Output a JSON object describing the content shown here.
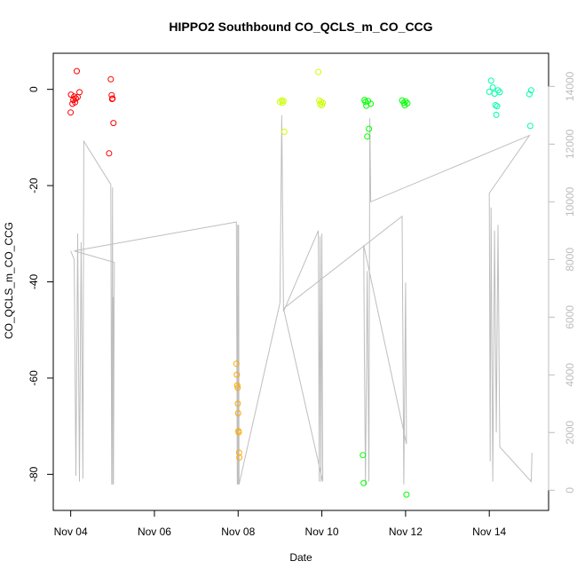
{
  "chart_data": {
    "type": "scatter",
    "title": "HIPPO2 Southbound CO_QCLS_m_CO_CCG",
    "xlabel": "Date",
    "ylabel": "CO_QCLS_m_CO_CCG",
    "x_ticks": [
      "Nov 04",
      "Nov 06",
      "Nov 08",
      "Nov 10",
      "Nov 12",
      "Nov 14"
    ],
    "y_ticks": [
      "0",
      "-20",
      "-40",
      "-60",
      "-80"
    ],
    "y2_ticks": [
      "0",
      "2000",
      "4000",
      "6000",
      "8000",
      "10000",
      "12000",
      "14000"
    ],
    "xlim": [
      "Nov 03 14:00",
      "Nov 15 10:00"
    ],
    "ylim": [
      -87.5,
      7.5
    ],
    "y2lim": [
      -700,
      15150
    ],
    "grid": false,
    "legend": "none",
    "series": [
      {
        "color": "#ff0000",
        "points": [
          [
            "Nov 04 00:00",
            -4.8
          ],
          [
            "Nov 04 00:10",
            -1.1
          ],
          [
            "Nov 04 01:00",
            -3.0
          ],
          [
            "Nov 04 01:30",
            -2.2
          ],
          [
            "Nov 04 02:00",
            -1.5
          ],
          [
            "Nov 04 02:30",
            -2.7
          ],
          [
            "Nov 04 03:00",
            -1.9
          ],
          [
            "Nov 04 03:30",
            3.8
          ],
          [
            "Nov 04 04:00",
            -1.6
          ],
          [
            "Nov 04 05:00",
            -0.6
          ],
          [
            "Nov 04 22:00",
            -13.3
          ],
          [
            "Nov 04 23:00",
            2.1
          ],
          [
            "Nov 04 23:30",
            -1.2
          ],
          [
            "Nov 04 23:45",
            -2.0
          ],
          [
            "Nov 05 00:00",
            -1.9
          ],
          [
            "Nov 05 00:30",
            -7.0
          ]
        ]
      },
      {
        "color": "#ffaa00",
        "points": [
          [
            "Nov 07 23:00",
            -57.0
          ],
          [
            "Nov 07 23:15",
            -59.3
          ],
          [
            "Nov 07 23:30",
            -61.5
          ],
          [
            "Nov 07 23:45",
            -62.0
          ],
          [
            "Nov 07 23:50",
            -65.3
          ],
          [
            "Nov 08 00:00",
            -67.3
          ],
          [
            "Nov 08 00:10",
            -71.0
          ],
          [
            "Nov 08 00:20",
            -71.3
          ],
          [
            "Nov 08 00:30",
            -75.5
          ],
          [
            "Nov 08 00:40",
            -76.5
          ]
        ]
      },
      {
        "color": "#ccff00",
        "points": [
          [
            "Nov 09 00:00",
            -2.6
          ],
          [
            "Nov 09 01:00",
            -2.3
          ],
          [
            "Nov 09 01:30",
            -2.8
          ],
          [
            "Nov 09 02:00",
            -2.4
          ],
          [
            "Nov 09 02:30",
            -8.8
          ],
          [
            "Nov 09 22:00",
            3.6
          ],
          [
            "Nov 09 22:30",
            -2.3
          ],
          [
            "Nov 09 23:00",
            -3.1
          ],
          [
            "Nov 09 23:30",
            -2.6
          ],
          [
            "Nov 10 00:00",
            -3.3
          ],
          [
            "Nov 10 00:30",
            -2.8
          ]
        ]
      },
      {
        "color": "#00ff00",
        "points": [
          [
            "Nov 10 23:30",
            -76.0
          ],
          [
            "Nov 11 00:00",
            -81.8
          ],
          [
            "Nov 11 00:30",
            -2.2
          ],
          [
            "Nov 11 01:00",
            -2.6
          ],
          [
            "Nov 11 01:30",
            -3.4
          ],
          [
            "Nov 11 02:00",
            -9.8
          ],
          [
            "Nov 11 02:30",
            -2.4
          ],
          [
            "Nov 11 03:00",
            -8.2
          ],
          [
            "Nov 11 04:00",
            -3.0
          ],
          [
            "Nov 11 22:00",
            -2.3
          ],
          [
            "Nov 11 23:00",
            -2.8
          ],
          [
            "Nov 11 23:30",
            -3.3
          ],
          [
            "Nov 12 00:00",
            -2.5
          ],
          [
            "Nov 12 00:30",
            -84.2
          ],
          [
            "Nov 12 01:00",
            -2.9
          ]
        ]
      },
      {
        "color": "#00ffaa",
        "points": [
          [
            "Nov 14 00:00",
            -0.5
          ],
          [
            "Nov 14 01:00",
            1.8
          ],
          [
            "Nov 14 02:00",
            0.4
          ],
          [
            "Nov 14 03:00",
            -0.9
          ],
          [
            "Nov 14 03:30",
            -3.3
          ],
          [
            "Nov 14 04:00",
            -5.3
          ],
          [
            "Nov 14 04:30",
            -3.5
          ],
          [
            "Nov 14 05:00",
            -0.2
          ],
          [
            "Nov 14 06:00",
            -0.6
          ],
          [
            "Nov 14 23:00",
            -1.0
          ],
          [
            "Nov 14 23:30",
            -7.6
          ],
          [
            "Nov 15 00:00",
            -0.2
          ]
        ]
      }
    ],
    "line_series": {
      "color": "#bebebe",
      "axis": "right",
      "points": [
        [
          "Nov 04 00:00",
          8300
        ],
        [
          "Nov 04 02:00",
          8000
        ],
        [
          "Nov 04 03:00",
          500
        ],
        [
          "Nov 04 04:00",
          8900
        ],
        [
          "Nov 04 05:00",
          300
        ],
        [
          "Nov 04 06:00",
          8600
        ],
        [
          "Nov 04 07:00",
          400
        ],
        [
          "Nov 04 07:30",
          12100
        ],
        [
          "Nov 04 23:00",
          10600
        ],
        [
          "Nov 04 23:30",
          200
        ],
        [
          "Nov 05 00:00",
          10500
        ],
        [
          "Nov 05 00:10",
          200
        ],
        [
          "Nov 05 00:20",
          6700
        ],
        [
          "Nov 05 00:30",
          200
        ],
        [
          "Nov 05 01:00",
          7900
        ],
        [
          "Nov 04 02:00",
          8300
        ],
        [
          "Nov 07 23:00",
          9300
        ],
        [
          "Nov 07 23:30",
          200
        ],
        [
          "Nov 07 23:45",
          9200
        ],
        [
          "Nov 08 00:00",
          200
        ],
        [
          "Nov 08 00:15",
          9200
        ],
        [
          "Nov 08 00:30",
          200
        ],
        [
          "Nov 09 00:00",
          6500
        ],
        [
          "Nov 09 01:00",
          13000
        ],
        [
          "Nov 09 02:00",
          6200
        ],
        [
          "Nov 09 22:00",
          9000
        ],
        [
          "Nov 09 22:30",
          300
        ],
        [
          "Nov 09 23:00",
          8800
        ],
        [
          "Nov 09 23:30",
          300
        ],
        [
          "Nov 10 00:00",
          8900
        ],
        [
          "Nov 10 00:30",
          300
        ],
        [
          "Nov 09 02:00",
          6300
        ],
        [
          "Nov 11 22:00",
          9500
        ],
        [
          "Nov 11 23:00",
          200
        ],
        [
          "Nov 12 00:00",
          7200
        ],
        [
          "Nov 12 00:30",
          1600
        ],
        [
          "Nov 11 00:00",
          8500
        ],
        [
          "Nov 11 00:30",
          3900
        ],
        [
          "Nov 11 01:00",
          200
        ],
        [
          "Nov 11 02:00",
          7600
        ],
        [
          "Nov 11 03:00",
          300
        ],
        [
          "Nov 11 03:30",
          12900
        ],
        [
          "Nov 11 04:00",
          10000
        ],
        [
          "Nov 14 23:00",
          12300
        ],
        [
          "Nov 14 00:00",
          10300
        ],
        [
          "Nov 14 00:30",
          1000
        ],
        [
          "Nov 14 01:00",
          9800
        ],
        [
          "Nov 14 02:00",
          300
        ],
        [
          "Nov 14 03:00",
          9000
        ],
        [
          "Nov 14 04:00",
          2000
        ],
        [
          "Nov 14 05:00",
          9200
        ],
        [
          "Nov 14 06:00",
          1500
        ],
        [
          "Nov 15 00:00",
          300
        ],
        [
          "Nov 15 00:30",
          1300
        ]
      ]
    }
  }
}
